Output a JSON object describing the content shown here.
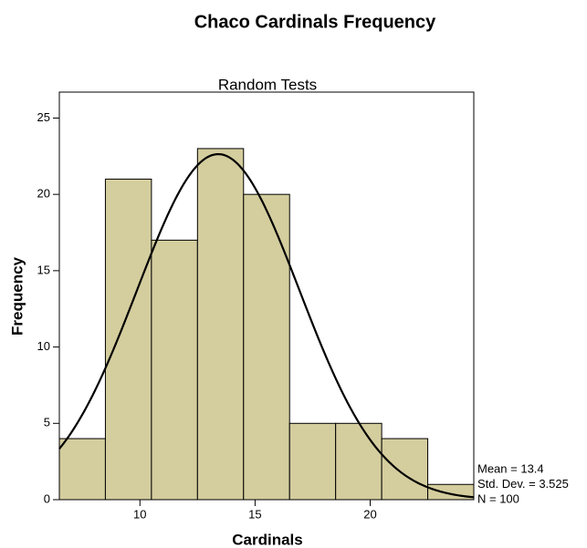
{
  "chart_data": {
    "type": "histogram",
    "title": "Chaco Cardinals Frequency",
    "subtitle": "Random Tests",
    "x_label": "Cardinals",
    "y_label": "Frequency",
    "bins": [
      6.5,
      8.5,
      10.5,
      12.5,
      14.5,
      16.5,
      18.5,
      20.5,
      22.5,
      24.5
    ],
    "values": [
      4,
      21,
      17,
      23,
      20,
      5,
      5,
      4,
      1
    ],
    "color": "#d4cd9e",
    "xlim": [
      6.5,
      24.5
    ],
    "xticks": [
      10,
      15,
      20
    ],
    "ylim": [
      0,
      26.7
    ],
    "yticks": [
      0,
      5,
      10,
      15,
      20,
      25
    ],
    "normal_curve": {
      "mean": 13.4,
      "sd": 3.525,
      "n": 100
    },
    "annotations": [
      "Mean = 13.4",
      "Std. Dev. = 3.525",
      "N = 100"
    ]
  }
}
